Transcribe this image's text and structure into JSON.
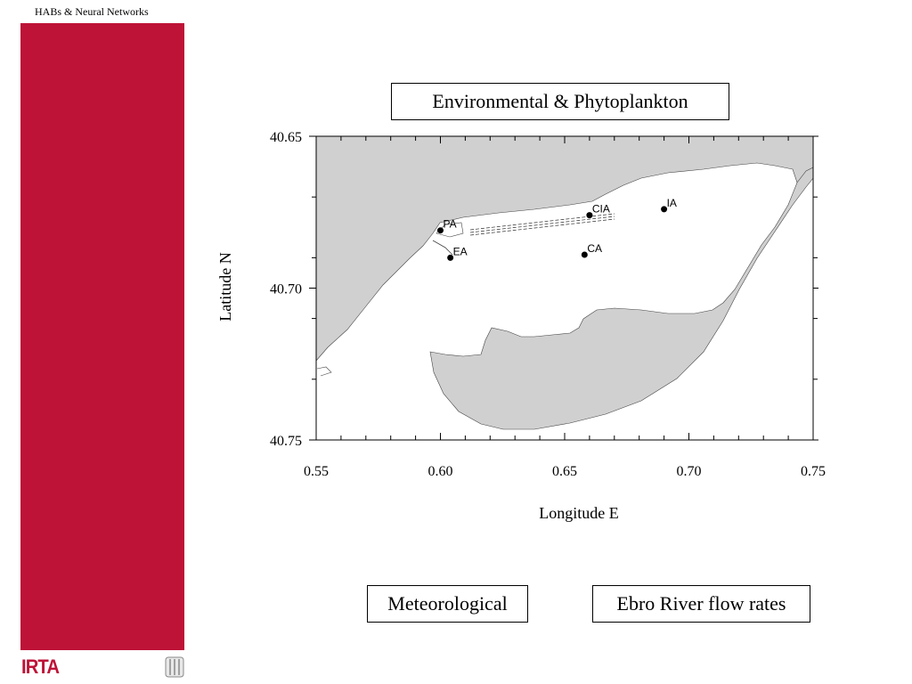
{
  "header": {
    "title": "HABs & Neural Networks"
  },
  "logos": {
    "irta": "IRTA",
    "seal_icon": "institutional-seal"
  },
  "boxes": {
    "environmental": "Environmental & Phytoplankton",
    "meteorological": "Meteorological",
    "ebro": "Ebro River flow rates"
  },
  "map": {
    "xlabel": "Longitude E",
    "ylabel": "Latitude N",
    "x_ticks": [
      "0.55",
      "0.60",
      "0.65",
      "0.70",
      "0.75"
    ],
    "y_ticks": [
      "40.65",
      "40.70",
      "40.75"
    ],
    "xlim": [
      0.55,
      0.75
    ],
    "ylim": [
      40.65,
      40.75
    ],
    "y_axis_inverted": true,
    "land_color": "#d0d0d0",
    "water_color": "#ffffff",
    "stations": [
      {
        "name": "PA",
        "lon": 0.6,
        "lat": 40.681
      },
      {
        "name": "CIA",
        "lon": 0.66,
        "lat": 40.676
      },
      {
        "name": "IA",
        "lon": 0.69,
        "lat": 40.674
      },
      {
        "name": "EA",
        "lon": 0.604,
        "lat": 40.69
      },
      {
        "name": "CA",
        "lon": 0.658,
        "lat": 40.689
      }
    ]
  }
}
